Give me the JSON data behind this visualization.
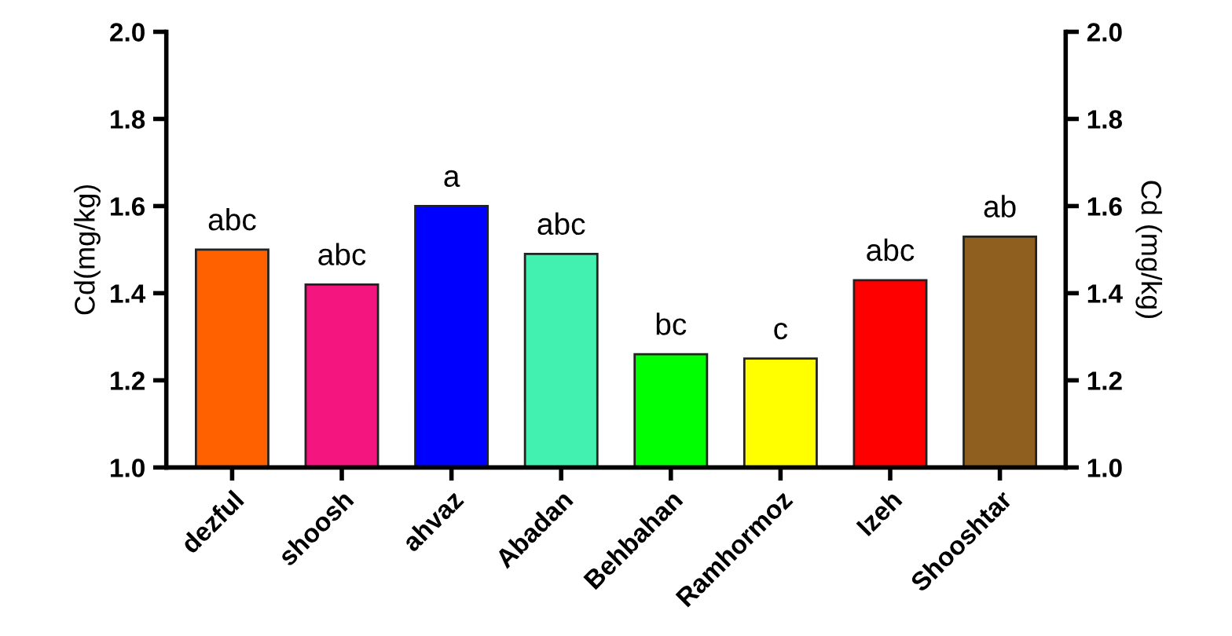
{
  "chart_data": {
    "type": "bar",
    "categories": [
      "dezful",
      "shoosh",
      "ahvaz",
      "Abadan",
      "Behbahan",
      "Ramhormoz",
      "Izeh",
      "Shooshtar"
    ],
    "values": [
      1.5,
      1.42,
      1.6,
      1.49,
      1.26,
      1.25,
      1.43,
      1.53
    ],
    "colors": [
      "#ff6000",
      "#f5157e",
      "#0000ff",
      "#42f0b0",
      "#00ff00",
      "#ffff00",
      "#ff0000",
      "#8f5f20"
    ],
    "ylabel": "Cd(mg/kg)",
    "y2label": "Cd (mg/kg)",
    "ylim": [
      1.0,
      2.0
    ],
    "yticks": [
      {
        "value": 1.0,
        "label": "1.0"
      },
      1.2,
      1.4,
      1.6,
      1.8,
      {
        "value": 2.0,
        "label": "2.0"
      }
    ],
    "y2lim": [
      1.0,
      2.0
    ],
    "y2ticks": [
      {
        "value": 1.0,
        "label": "1.0"
      },
      1.2,
      1.4,
      1.6,
      1.8,
      {
        "value": 2.0,
        "label": "2.0"
      }
    ],
    "annotations": [
      {
        "text": "abc",
        "x": "dezful",
        "y": 1.5
      },
      {
        "text": "abc",
        "x": "shoosh",
        "y": 1.42
      },
      {
        "text": "a",
        "x": "ahvaz",
        "y": 1.6
      },
      {
        "text": "abc",
        "x": "Abadan",
        "y": 1.49
      },
      {
        "text": "bc",
        "x": "Behbahan",
        "y": 1.26
      },
      {
        "text": "c",
        "x": "Ramhormoz",
        "y": 1.25
      },
      {
        "text": "abc",
        "x": "Izeh",
        "y": 1.43
      },
      {
        "text": "ab",
        "x": "Shooshtar",
        "y": 1.53
      }
    ],
    "grid": false,
    "legend": false
  }
}
